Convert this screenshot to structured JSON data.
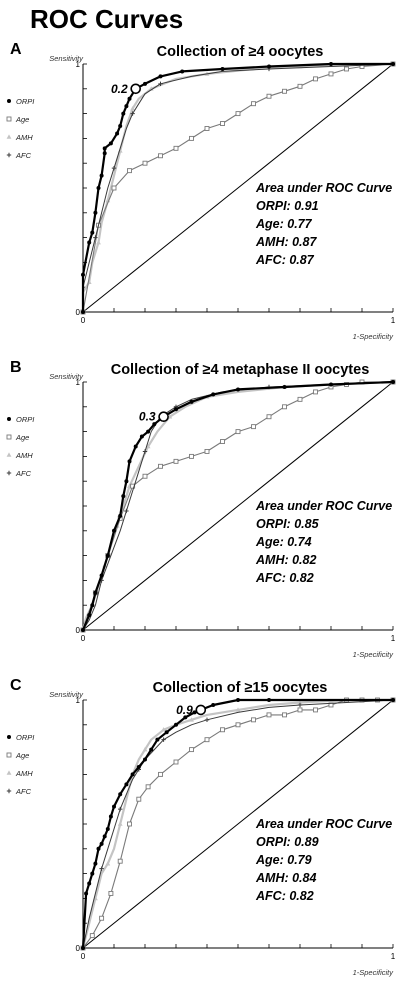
{
  "title": "ROC Curves",
  "legend": [
    "ORPI",
    "Age",
    "AMH",
    "AFC"
  ],
  "auc_heading": "Area under ROC Curve",
  "colors": {
    "ORPI": "#000000",
    "Age": "#7a7a7a",
    "AMH": "#c4c4c4",
    "AFC": "#3a3a3a",
    "diagonal": "#000000"
  },
  "chart_data": [
    {
      "type": "line",
      "panel": "A",
      "title": "Collection of ≥4 oocytes",
      "xlabel": "1-Specificity",
      "ylabel": "Sensitivity",
      "xlim": [
        0,
        1
      ],
      "ylim": [
        0,
        1
      ],
      "xticks": [
        "0",
        "1"
      ],
      "yticks": [
        "0",
        "1"
      ],
      "auc": [
        "ORPI: 0.91",
        "Age: 0.77",
        "AMH: 0.87",
        "AFC: 0.87"
      ],
      "cutoff": {
        "label": "0.2",
        "x": 0.17,
        "y": 0.9
      },
      "series": [
        {
          "name": "ORPI",
          "x": [
            0,
            0,
            0.02,
            0.03,
            0.04,
            0.05,
            0.06,
            0.07,
            0.07,
            0.09,
            0.11,
            0.12,
            0.13,
            0.14,
            0.15,
            0.17,
            0.2,
            0.25,
            0.32,
            0.45,
            0.6,
            0.8,
            1.0
          ],
          "y": [
            0,
            0.15,
            0.28,
            0.32,
            0.4,
            0.5,
            0.55,
            0.64,
            0.66,
            0.68,
            0.72,
            0.75,
            0.8,
            0.83,
            0.86,
            0.9,
            0.92,
            0.95,
            0.97,
            0.98,
            0.99,
            1.0,
            1.0
          ]
        },
        {
          "name": "Age",
          "x": [
            0,
            0.05,
            0.1,
            0.15,
            0.2,
            0.25,
            0.3,
            0.35,
            0.4,
            0.45,
            0.5,
            0.55,
            0.6,
            0.65,
            0.7,
            0.75,
            0.8,
            0.85,
            0.9,
            1.0
          ],
          "y": [
            0,
            0.35,
            0.5,
            0.57,
            0.6,
            0.63,
            0.66,
            0.7,
            0.74,
            0.76,
            0.8,
            0.84,
            0.87,
            0.89,
            0.91,
            0.94,
            0.96,
            0.98,
            0.99,
            1.0
          ]
        },
        {
          "name": "AMH",
          "x": [
            0,
            0,
            0.02,
            0.03,
            0.05,
            0.06,
            0.08,
            0.1,
            0.12,
            0.14,
            0.16,
            0.18,
            0.22,
            0.3,
            0.4,
            0.55,
            0.7,
            0.85,
            1.0
          ],
          "y": [
            0,
            0.08,
            0.12,
            0.2,
            0.28,
            0.36,
            0.45,
            0.55,
            0.65,
            0.75,
            0.82,
            0.86,
            0.9,
            0.94,
            0.96,
            0.98,
            0.99,
            1.0,
            1.0
          ]
        },
        {
          "name": "AFC",
          "x": [
            0,
            0,
            0.02,
            0.04,
            0.06,
            0.08,
            0.1,
            0.12,
            0.14,
            0.16,
            0.18,
            0.2,
            0.25,
            0.35,
            0.45,
            0.6,
            0.8,
            1.0
          ],
          "y": [
            0,
            0.1,
            0.2,
            0.3,
            0.4,
            0.5,
            0.58,
            0.66,
            0.74,
            0.8,
            0.84,
            0.88,
            0.92,
            0.95,
            0.97,
            0.98,
            0.99,
            1.0
          ]
        }
      ]
    },
    {
      "type": "line",
      "panel": "B",
      "title": "Collection of ≥4 metaphase II oocytes",
      "xlabel": "1-Specificity",
      "ylabel": "Sensitivity",
      "xlim": [
        0,
        1
      ],
      "ylim": [
        0,
        1
      ],
      "xticks": [
        "0",
        "1"
      ],
      "yticks": [
        "0",
        "1"
      ],
      "auc": [
        "ORPI: 0.85",
        "Age: 0.74",
        "AMH: 0.82",
        "AFC: 0.82"
      ],
      "cutoff": {
        "label": "0.3",
        "x": 0.26,
        "y": 0.86
      },
      "series": [
        {
          "name": "ORPI",
          "x": [
            0,
            0.02,
            0.03,
            0.04,
            0.06,
            0.08,
            0.1,
            0.12,
            0.13,
            0.14,
            0.15,
            0.17,
            0.19,
            0.21,
            0.23,
            0.26,
            0.3,
            0.35,
            0.42,
            0.5,
            0.65,
            0.8,
            1.0
          ],
          "y": [
            0,
            0.06,
            0.1,
            0.15,
            0.22,
            0.3,
            0.4,
            0.46,
            0.54,
            0.6,
            0.68,
            0.74,
            0.78,
            0.8,
            0.83,
            0.86,
            0.89,
            0.92,
            0.95,
            0.97,
            0.98,
            0.99,
            1.0
          ]
        },
        {
          "name": "Age",
          "x": [
            0,
            0.04,
            0.08,
            0.12,
            0.16,
            0.2,
            0.25,
            0.3,
            0.35,
            0.4,
            0.45,
            0.5,
            0.55,
            0.6,
            0.65,
            0.7,
            0.75,
            0.8,
            0.85,
            0.9,
            1.0
          ],
          "y": [
            0,
            0.15,
            0.3,
            0.45,
            0.58,
            0.62,
            0.66,
            0.68,
            0.7,
            0.72,
            0.76,
            0.8,
            0.82,
            0.86,
            0.9,
            0.93,
            0.96,
            0.98,
            0.99,
            1.0,
            1.0
          ]
        },
        {
          "name": "AMH",
          "x": [
            0,
            0.01,
            0.03,
            0.05,
            0.07,
            0.09,
            0.11,
            0.13,
            0.15,
            0.18,
            0.21,
            0.24,
            0.28,
            0.33,
            0.4,
            0.5,
            0.65,
            0.8,
            1.0
          ],
          "y": [
            0,
            0.05,
            0.1,
            0.18,
            0.26,
            0.34,
            0.42,
            0.5,
            0.58,
            0.66,
            0.74,
            0.8,
            0.86,
            0.9,
            0.94,
            0.96,
            0.98,
            0.99,
            1.0
          ]
        },
        {
          "name": "AFC",
          "x": [
            0,
            0.02,
            0.04,
            0.06,
            0.09,
            0.12,
            0.14,
            0.16,
            0.18,
            0.2,
            0.22,
            0.25,
            0.3,
            0.35,
            0.45,
            0.6,
            0.8,
            1.0
          ],
          "y": [
            0,
            0.04,
            0.1,
            0.2,
            0.3,
            0.4,
            0.48,
            0.56,
            0.64,
            0.72,
            0.8,
            0.86,
            0.9,
            0.93,
            0.96,
            0.98,
            0.99,
            1.0
          ]
        }
      ]
    },
    {
      "type": "line",
      "panel": "C",
      "title": "Collection of ≥15 oocytes",
      "xlabel": "1-Specificity",
      "ylabel": "Sensitivity",
      "xlim": [
        0,
        1
      ],
      "ylim": [
        0,
        1
      ],
      "xticks": [
        "0",
        "1"
      ],
      "yticks": [
        "0",
        "1"
      ],
      "auc": [
        "ORPI: 0.89",
        "Age: 0.79",
        "AMH: 0.84",
        "AFC: 0.82"
      ],
      "cutoff": {
        "label": "0.9",
        "x": 0.38,
        "y": 0.96
      },
      "series": [
        {
          "name": "ORPI",
          "x": [
            0,
            0.01,
            0.02,
            0.03,
            0.04,
            0.05,
            0.06,
            0.07,
            0.08,
            0.09,
            0.1,
            0.12,
            0.14,
            0.16,
            0.18,
            0.2,
            0.22,
            0.24,
            0.27,
            0.3,
            0.33,
            0.36,
            0.38,
            0.42,
            0.5,
            0.6,
            1.0
          ],
          "y": [
            0,
            0.22,
            0.26,
            0.3,
            0.34,
            0.4,
            0.42,
            0.45,
            0.48,
            0.53,
            0.57,
            0.62,
            0.66,
            0.7,
            0.73,
            0.76,
            0.8,
            0.84,
            0.87,
            0.9,
            0.93,
            0.95,
            0.96,
            0.98,
            1.0,
            1.0,
            1.0
          ]
        },
        {
          "name": "Age",
          "x": [
            0,
            0.03,
            0.06,
            0.09,
            0.12,
            0.15,
            0.18,
            0.21,
            0.25,
            0.3,
            0.35,
            0.4,
            0.45,
            0.5,
            0.55,
            0.6,
            0.65,
            0.7,
            0.75,
            0.8,
            0.85,
            0.9,
            0.95,
            1.0
          ],
          "y": [
            0,
            0.05,
            0.12,
            0.22,
            0.35,
            0.5,
            0.6,
            0.65,
            0.7,
            0.75,
            0.8,
            0.84,
            0.88,
            0.9,
            0.92,
            0.94,
            0.94,
            0.96,
            0.96,
            0.98,
            1.0,
            1.0,
            1.0,
            1.0
          ]
        },
        {
          "name": "AMH",
          "x": [
            0,
            0.02,
            0.04,
            0.06,
            0.08,
            0.1,
            0.12,
            0.14,
            0.16,
            0.18,
            0.2,
            0.22,
            0.26,
            0.3,
            0.35,
            0.4,
            0.5,
            0.6,
            0.7,
            0.85,
            1.0
          ],
          "y": [
            0,
            0.1,
            0.2,
            0.3,
            0.34,
            0.4,
            0.5,
            0.6,
            0.7,
            0.76,
            0.8,
            0.84,
            0.88,
            0.9,
            0.92,
            0.94,
            0.96,
            0.98,
            0.99,
            1.0,
            1.0
          ]
        },
        {
          "name": "AFC",
          "x": [
            0,
            0.02,
            0.04,
            0.06,
            0.08,
            0.1,
            0.12,
            0.14,
            0.16,
            0.18,
            0.2,
            0.23,
            0.26,
            0.3,
            0.35,
            0.4,
            0.5,
            0.6,
            0.7,
            0.85,
            1.0
          ],
          "y": [
            0,
            0.12,
            0.22,
            0.32,
            0.4,
            0.48,
            0.56,
            0.62,
            0.68,
            0.72,
            0.76,
            0.8,
            0.84,
            0.87,
            0.9,
            0.92,
            0.95,
            0.97,
            0.98,
            0.99,
            1.0
          ]
        }
      ]
    }
  ]
}
